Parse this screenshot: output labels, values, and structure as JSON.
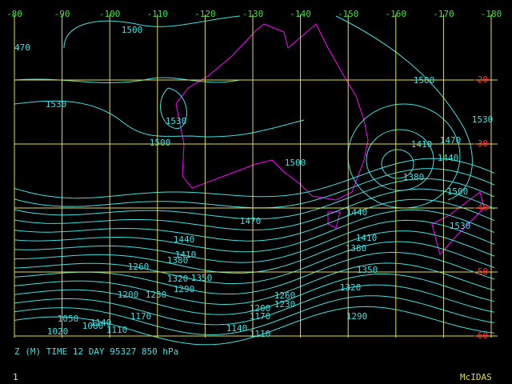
{
  "longitude_labels": [
    -80,
    -90,
    -100,
    -110,
    -120,
    -130,
    -140,
    -150,
    -160,
    -170,
    -180
  ],
  "latitude_labels": [
    -20,
    -30,
    -40,
    -50,
    -60
  ],
  "contour_labels": [
    1500,
    470,
    1530,
    1530,
    1500,
    1500,
    1530,
    1410,
    1470,
    1440,
    1380,
    1500,
    1500,
    1530,
    1440,
    1470,
    1410,
    1380,
    1440,
    1410,
    1380,
    1350,
    1260,
    1320,
    1350,
    1290,
    1320,
    1200,
    1230,
    1260,
    1230,
    1200,
    1170,
    1170,
    1290,
    1050,
    1140,
    1080,
    1110,
    1020,
    1140,
    1110
  ],
  "caption": "Z (M) TIME 12 DAY 95327 850 hPa",
  "frame_number": "1",
  "brand": "McIDAS"
}
